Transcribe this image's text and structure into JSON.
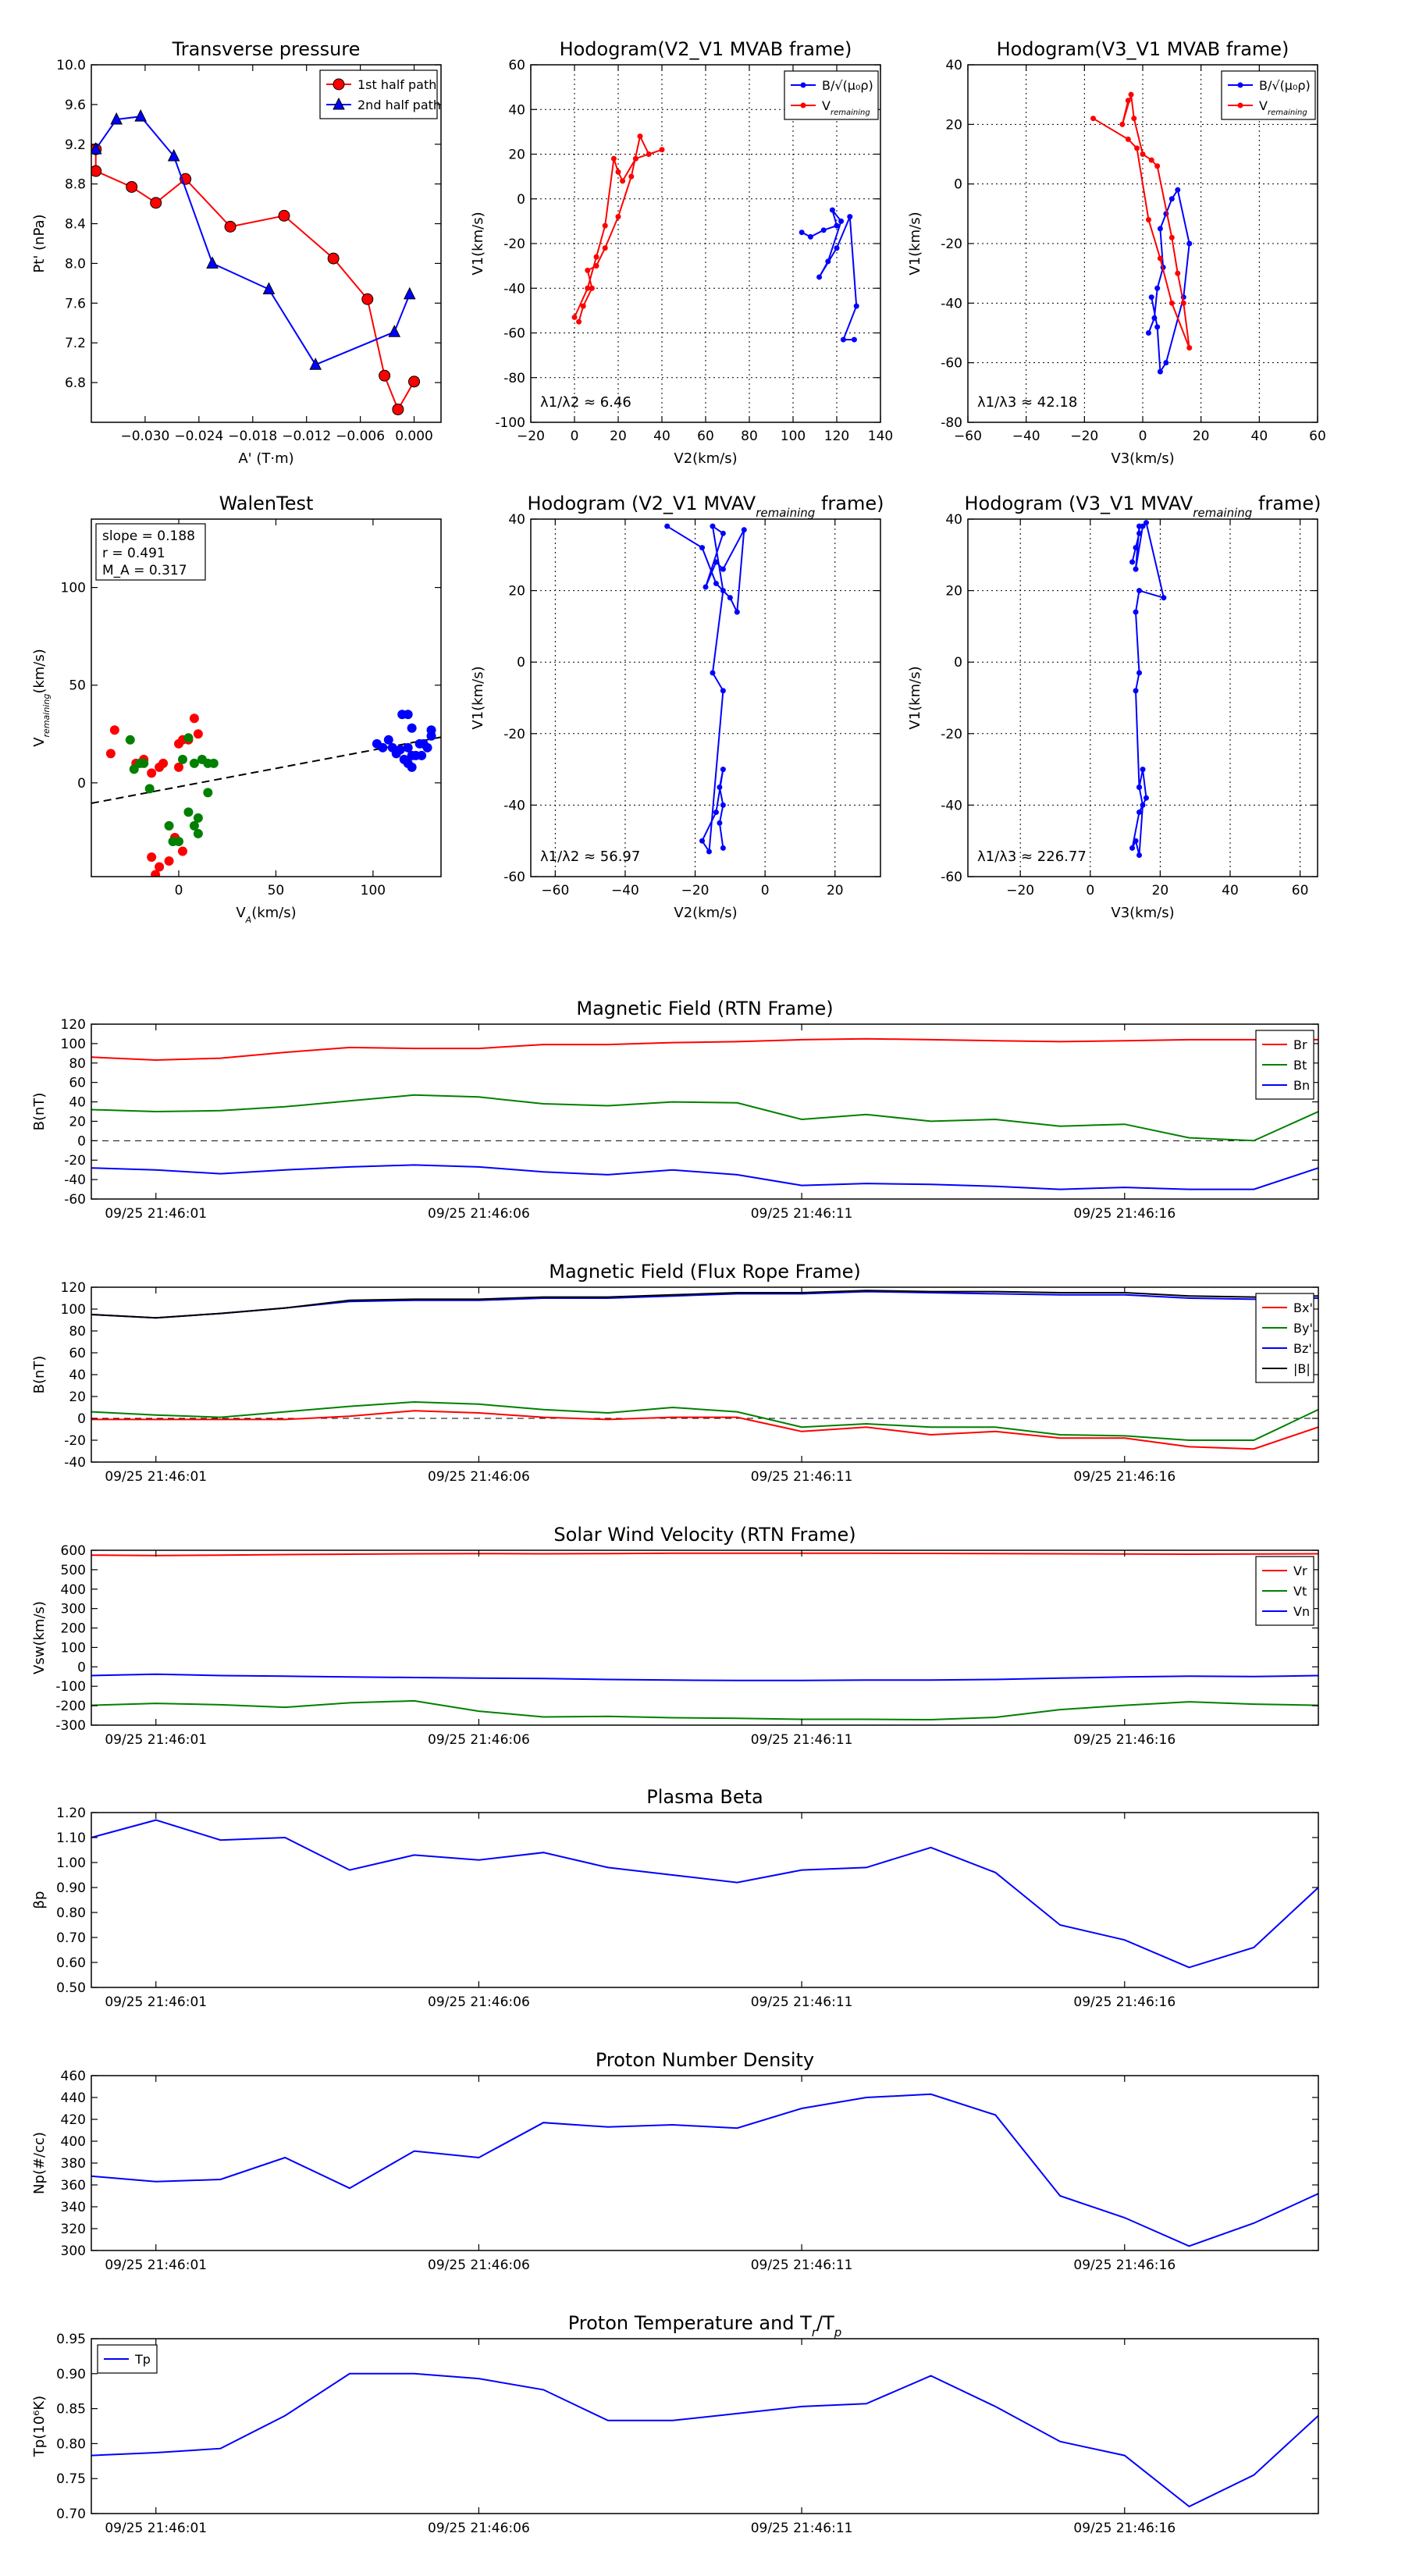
{
  "charts": {
    "tp": {
      "title": "Transverse pressure",
      "xlabel": "A' (T·m)",
      "ylabel": "Pt' (nPa)",
      "xlim": [
        -0.036,
        0.003
      ],
      "ylim": [
        6.4,
        10.0
      ],
      "xticks": [
        -0.03,
        -0.024,
        -0.018,
        -0.012,
        -0.006,
        0.0
      ],
      "xtick_labels": [
        "−0.030",
        "−0.024",
        "−0.018",
        "−0.012",
        "−0.006",
        "0.000"
      ],
      "yticks": [
        6.8,
        7.2,
        7.6,
        8.0,
        8.4,
        8.8,
        9.2,
        9.6,
        10.0
      ],
      "ytick_labels": [
        "6.8",
        "7.2",
        "7.6",
        "8.0",
        "8.4",
        "8.8",
        "9.2",
        "9.6",
        "10.0"
      ],
      "series": [
        {
          "name": "1st half path",
          "color": "#ff0000",
          "marker": "circle",
          "x": [
            -0.0355,
            -0.0355,
            -0.0315,
            -0.0288,
            -0.0255,
            -0.0205,
            -0.0145,
            -0.009,
            -0.0052,
            -0.0033,
            -0.0018,
            0.0
          ],
          "y": [
            9.15,
            8.93,
            8.77,
            8.61,
            8.85,
            8.37,
            8.48,
            8.05,
            7.64,
            6.87,
            6.53,
            6.81
          ]
        },
        {
          "name": "2nd half path",
          "color": "#0000ff",
          "marker": "triangle",
          "x": [
            -0.0355,
            -0.0332,
            -0.0305,
            -0.0268,
            -0.0225,
            -0.0162,
            -0.011,
            -0.0022,
            -0.0005
          ],
          "y": [
            9.15,
            9.45,
            9.48,
            9.08,
            8.0,
            7.74,
            6.98,
            7.31,
            7.69
          ]
        }
      ],
      "legend": [
        "1st half path",
        "2nd half path"
      ]
    },
    "hodo1": {
      "title": "Hodogram(V2_V1 MVAB frame)",
      "xlabel": "V2(km/s)",
      "ylabel": "V1(km/s)",
      "xlim": [
        -20,
        140
      ],
      "ylim": [
        -100,
        60
      ],
      "xticks": [
        -20,
        0,
        20,
        40,
        60,
        80,
        100,
        120,
        140
      ],
      "yticks": [
        -100,
        -80,
        -60,
        -40,
        -20,
        0,
        20,
        40,
        60
      ],
      "series": [
        {
          "name": "B/√(μ₀ρ)",
          "color": "#0000ff",
          "x": [
            104,
            108,
            114,
            120,
            118,
            122,
            116,
            112,
            120,
            126,
            129,
            123,
            128
          ],
          "y": [
            -15,
            -17,
            -14,
            -12,
            -5,
            -10,
            -28,
            -35,
            -22,
            -8,
            -48,
            -63,
            -63
          ]
        },
        {
          "name": "V_remaining",
          "color": "#ff0000",
          "x": [
            2,
            4,
            8,
            6,
            10,
            14,
            20,
            26,
            30,
            34,
            40,
            28,
            22,
            20,
            18,
            14,
            10,
            6,
            0
          ],
          "y": [
            -55,
            -48,
            -40,
            -32,
            -30,
            -22,
            -8,
            10,
            28,
            20,
            22,
            18,
            8,
            12,
            18,
            -12,
            -26,
            -40,
            -53
          ]
        }
      ],
      "legend": [
        "B/√(μ₀ρ)",
        "V_remaining"
      ],
      "annotation": "λ1/λ2 ≈ 6.46"
    },
    "hodo2": {
      "title": "Hodogram(V3_V1 MVAB frame)",
      "xlabel": "V3(km/s)",
      "ylabel": "V1(km/s)",
      "xlim": [
        -60,
        60
      ],
      "ylim": [
        -80,
        40
      ],
      "xticks": [
        -60,
        -40,
        -20,
        0,
        20,
        40,
        60
      ],
      "yticks": [
        -80,
        -60,
        -40,
        -20,
        0,
        20,
        40
      ],
      "series": [
        {
          "name": "B/√(μ₀ρ)",
          "color": "#0000ff",
          "x": [
            2,
            4,
            5,
            7,
            6,
            8,
            10,
            12,
            16,
            14,
            8,
            6,
            5,
            3
          ],
          "y": [
            -50,
            -45,
            -35,
            -28,
            -15,
            -10,
            -5,
            -2,
            -20,
            -38,
            -60,
            -63,
            -48,
            -38
          ]
        },
        {
          "name": "V_remaining",
          "color": "#ff0000",
          "x": [
            -5,
            -7,
            -4,
            -3,
            0,
            3,
            5,
            10,
            12,
            14,
            16,
            10,
            6,
            2,
            -2,
            -5,
            -17
          ],
          "y": [
            28,
            20,
            30,
            22,
            10,
            8,
            6,
            -18,
            -30,
            -40,
            -55,
            -40,
            -25,
            -12,
            12,
            15,
            22
          ]
        }
      ],
      "legend": [
        "B/√(μ₀ρ)",
        "V_remaining"
      ],
      "annotation": "λ1/λ3 ≈ 42.18"
    },
    "walen": {
      "title": "WalenTest",
      "xlabel": "V_A(km/s)",
      "ylabel": "V_remaining(km/s)",
      "xlim": [
        -45,
        135
      ],
      "ylim": [
        -48,
        135
      ],
      "xticks": [
        0,
        50,
        100
      ],
      "yticks": [
        0,
        50,
        100
      ],
      "fit": {
        "slope": 0.188,
        "intercept": -2
      },
      "stats": [
        "slope = 0.188",
        "r = 0.491",
        "M_A = 0.317"
      ],
      "groups": [
        {
          "color": "#ff0000",
          "x": [
            -35,
            -33,
            -22,
            -18,
            -14,
            -10,
            -8,
            -5,
            -2,
            0,
            2,
            5,
            8,
            10,
            0,
            -2,
            -10,
            -12,
            -8,
            -14,
            2
          ],
          "y": [
            15,
            27,
            10,
            12,
            5,
            8,
            10,
            -40,
            -28,
            20,
            22,
            22,
            33,
            25,
            8,
            -28,
            -43,
            -47,
            -53,
            -38,
            -35
          ]
        },
        {
          "color": "#008000",
          "x": [
            -25,
            -23,
            -20,
            -18,
            -15,
            -5,
            -3,
            0,
            2,
            5,
            8,
            10,
            12,
            15,
            18,
            8,
            10,
            15,
            5
          ],
          "y": [
            22,
            7,
            10,
            10,
            -3,
            -22,
            -30,
            -30,
            12,
            23,
            10,
            -18,
            12,
            10,
            10,
            -22,
            -26,
            -5,
            -15
          ]
        },
        {
          "color": "#0000ff",
          "x": [
            102,
            105,
            108,
            110,
            112,
            114,
            116,
            118,
            118,
            120,
            120,
            122,
            125,
            126,
            128,
            130,
            115,
            118,
            120,
            124,
            130
          ],
          "y": [
            20,
            18,
            22,
            18,
            15,
            17,
            12,
            10,
            35,
            28,
            8,
            14,
            14,
            20,
            18,
            27,
            35,
            18,
            14,
            20,
            24
          ]
        }
      ]
    },
    "mvav1": {
      "title": "Hodogram (V2_V1 MVAV_remaining frame)",
      "xlabel": "V2(km/s)",
      "ylabel": "V1(km/s)",
      "xlim": [
        -67,
        33
      ],
      "ylim": [
        -60,
        40
      ],
      "xticks": [
        -60,
        -40,
        -20,
        0,
        20
      ],
      "yticks": [
        -60,
        -40,
        -20,
        0,
        20,
        40
      ],
      "series": [
        {
          "name": "",
          "color": "#0000ff",
          "x": [
            -28,
            -18,
            -14,
            -10,
            -8,
            -6,
            -12,
            -14,
            -17,
            -12,
            -15,
            -12,
            -15,
            -12,
            -16,
            -18,
            -14,
            -12,
            -13,
            -12,
            -13,
            -12
          ],
          "y": [
            38,
            32,
            22,
            18,
            14,
            37,
            26,
            28,
            21,
            36,
            38,
            20,
            -3,
            -8,
            -53,
            -50,
            -42,
            -30,
            -35,
            -40,
            -45,
            -52
          ]
        }
      ],
      "annotation": "λ1/λ2 ≈ 56.97"
    },
    "mvav2": {
      "title": "Hodogram (V3_V1 MVAV_remaining frame)",
      "xlabel": "V3(km/s)",
      "ylabel": "V1(km/s)",
      "xlim": [
        -35,
        65
      ],
      "ylim": [
        -60,
        40
      ],
      "xticks": [
        -20,
        0,
        20,
        40,
        60
      ],
      "yticks": [
        -60,
        -40,
        -20,
        0,
        20,
        40
      ],
      "series": [
        {
          "name": "",
          "color": "#0000ff",
          "x": [
            12,
            13,
            14,
            14,
            13,
            15,
            16,
            21,
            14,
            13,
            14,
            13,
            14,
            15,
            16,
            14,
            12,
            13,
            14,
            15,
            14
          ],
          "y": [
            28,
            32,
            36,
            38,
            26,
            38,
            39,
            18,
            20,
            14,
            -3,
            -8,
            -35,
            -30,
            -38,
            -42,
            -52,
            -50,
            -54,
            -40,
            -35
          ]
        }
      ],
      "annotation": "λ1/λ3 ≈ 226.77"
    },
    "ts_time": {
      "x": [
        0,
        1,
        2,
        3,
        4,
        5,
        6,
        7,
        8,
        9,
        10,
        11,
        12,
        13,
        14,
        15,
        16,
        17,
        18,
        19
      ],
      "tick_positions": [
        1,
        6,
        11,
        16
      ],
      "tick_labels": [
        "09/25 21:46:01",
        "09/25 21:46:06",
        "09/25 21:46:11",
        "09/25 21:46:16"
      ]
    },
    "mag_rtn": {
      "title": "Magnetic Field (RTN Frame)",
      "ylabel": "B(nT)",
      "ylim": [
        -60,
        120
      ],
      "yticks": [
        -60,
        -40,
        -20,
        0,
        20,
        40,
        60,
        80,
        100,
        120
      ],
      "zero_line": true,
      "legend": [
        "Br",
        "Bt",
        "Bn"
      ],
      "series": [
        {
          "name": "Br",
          "color": "#ff0000",
          "y": [
            86,
            83,
            85,
            91,
            96,
            95,
            95,
            99,
            99,
            101,
            102,
            104,
            105,
            104,
            103,
            102,
            103,
            104,
            104,
            104
          ]
        },
        {
          "name": "Bt",
          "color": "#008000",
          "y": [
            32,
            30,
            31,
            35,
            41,
            47,
            45,
            38,
            36,
            40,
            39,
            22,
            27,
            20,
            22,
            15,
            17,
            3,
            0,
            30
          ]
        },
        {
          "name": "Bn",
          "color": "#0000ff",
          "y": [
            -28,
            -30,
            -34,
            -30,
            -27,
            -25,
            -27,
            -32,
            -35,
            -30,
            -35,
            -46,
            -44,
            -45,
            -47,
            -50,
            -48,
            -50,
            -50,
            -28
          ]
        }
      ]
    },
    "mag_fr": {
      "title": "Magnetic Field (Flux Rope Frame)",
      "ylabel": "B(nT)",
      "ylim": [
        -40,
        120
      ],
      "yticks": [
        -40,
        -20,
        0,
        20,
        40,
        60,
        80,
        100,
        120
      ],
      "zero_line": true,
      "legend": [
        "Bx'",
        "By'",
        "Bz'",
        "|B|"
      ],
      "series": [
        {
          "name": "Bx'",
          "color": "#ff0000",
          "y": [
            -1,
            -1,
            -1,
            -1,
            2,
            7,
            5,
            1,
            -1,
            1,
            1,
            -12,
            -8,
            -15,
            -12,
            -18,
            -18,
            -26,
            -28,
            -8
          ]
        },
        {
          "name": "By'",
          "color": "#008000",
          "y": [
            6,
            3,
            1,
            6,
            11,
            15,
            13,
            8,
            5,
            10,
            6,
            -8,
            -5,
            -8,
            -8,
            -15,
            -16,
            -20,
            -20,
            8
          ]
        },
        {
          "name": "Bz'",
          "color": "#0000ff",
          "y": [
            95,
            92,
            96,
            101,
            107,
            108,
            108,
            110,
            110,
            112,
            114,
            114,
            116,
            115,
            114,
            113,
            113,
            110,
            109,
            110
          ]
        },
        {
          "name": "|B|",
          "color": "#000000",
          "y": [
            95,
            92,
            96,
            101,
            108,
            109,
            109,
            111,
            111,
            113,
            115,
            115,
            117,
            116,
            116,
            115,
            115,
            112,
            111,
            112
          ]
        }
      ]
    },
    "vsw": {
      "title": "Solar Wind Velocity (RTN Frame)",
      "ylabel": "Vsw(km/s)",
      "ylim": [
        -300,
        600
      ],
      "yticks": [
        -300,
        -200,
        -100,
        0,
        100,
        200,
        300,
        400,
        500,
        600
      ],
      "zero_line": false,
      "legend": [
        "Vr",
        "Vt",
        "Vn"
      ],
      "series": [
        {
          "name": "Vr",
          "color": "#ff0000",
          "y": [
            575,
            573,
            575,
            578,
            580,
            582,
            583,
            582,
            583,
            585,
            585,
            585,
            585,
            584,
            583,
            582,
            581,
            580,
            581,
            582
          ]
        },
        {
          "name": "Vt",
          "color": "#008000",
          "y": [
            -198,
            -188,
            -195,
            -208,
            -185,
            -175,
            -228,
            -258,
            -255,
            -262,
            -265,
            -270,
            -270,
            -272,
            -260,
            -220,
            -198,
            -180,
            -192,
            -198
          ]
        },
        {
          "name": "Vn",
          "color": "#0000ff",
          "y": [
            -45,
            -38,
            -45,
            -48,
            -52,
            -55,
            -58,
            -60,
            -65,
            -68,
            -70,
            -70,
            -68,
            -68,
            -65,
            -58,
            -52,
            -48,
            -50,
            -45
          ]
        }
      ]
    },
    "beta": {
      "title": "Plasma Beta",
      "ylabel": "βp",
      "ylim": [
        0.5,
        1.2
      ],
      "yticks": [
        0.5,
        0.6,
        0.7,
        0.8,
        0.9,
        1.0,
        1.1,
        1.2
      ],
      "zero_line": false,
      "series": [
        {
          "name": "",
          "color": "#0000ff",
          "y": [
            1.1,
            1.17,
            1.09,
            1.1,
            0.97,
            1.03,
            1.01,
            1.04,
            0.98,
            0.95,
            0.92,
            0.97,
            0.98,
            1.06,
            0.96,
            0.75,
            0.69,
            0.58,
            0.66,
            0.9
          ]
        }
      ]
    },
    "density": {
      "title": "Proton Number Density",
      "ylabel": "Np(#/cc)",
      "ylim": [
        300,
        460
      ],
      "yticks": [
        300,
        320,
        340,
        360,
        380,
        400,
        420,
        440,
        460
      ],
      "zero_line": false,
      "series": [
        {
          "name": "",
          "color": "#0000ff",
          "y": [
            368,
            363,
            365,
            385,
            357,
            391,
            385,
            417,
            413,
            415,
            412,
            430,
            440,
            443,
            424,
            350,
            330,
            304,
            325,
            352
          ]
        }
      ]
    },
    "temp": {
      "title": "Proton Temperature and Tr/Tp",
      "ylabel": "Tp(10⁶K)",
      "ylim": [
        0.7,
        0.95
      ],
      "yticks": [
        0.7,
        0.75,
        0.8,
        0.85,
        0.9,
        0.95
      ],
      "zero_line": false,
      "legend": [
        "Tp"
      ],
      "series": [
        {
          "name": "Tp",
          "color": "#0000ff",
          "y": [
            0.783,
            0.787,
            0.793,
            0.84,
            0.9,
            0.9,
            0.893,
            0.877,
            0.833,
            0.833,
            0.843,
            0.853,
            0.857,
            0.897,
            0.853,
            0.803,
            0.783,
            0.71,
            0.755,
            0.84
          ]
        }
      ]
    }
  }
}
